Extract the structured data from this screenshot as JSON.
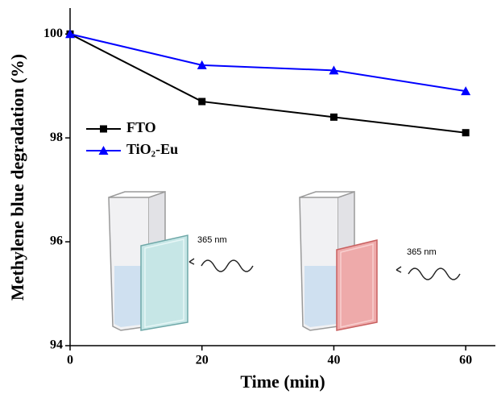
{
  "chart_data": {
    "type": "line",
    "x_label": "Time (min)",
    "y_label": "Methylene blue degradation (%)",
    "x": [
      0,
      20,
      40,
      60
    ],
    "series": [
      {
        "name": "FTO",
        "color": "#000000",
        "marker": "square",
        "values": [
          100,
          98.7,
          98.4,
          98.1
        ]
      },
      {
        "name": "TiO₂-Eu",
        "color": "#0000ff",
        "marker": "triangle",
        "values": [
          100,
          99.4,
          99.3,
          98.9
        ]
      }
    ],
    "xlim": [
      0,
      64.5
    ],
    "xticks": [
      0,
      20,
      40,
      60
    ],
    "ylim": [
      94,
      100.5
    ],
    "yticks": [
      94,
      96,
      98,
      100
    ],
    "legend": "upper left",
    "annotations": [
      "365 nm",
      "365 nm"
    ]
  }
}
